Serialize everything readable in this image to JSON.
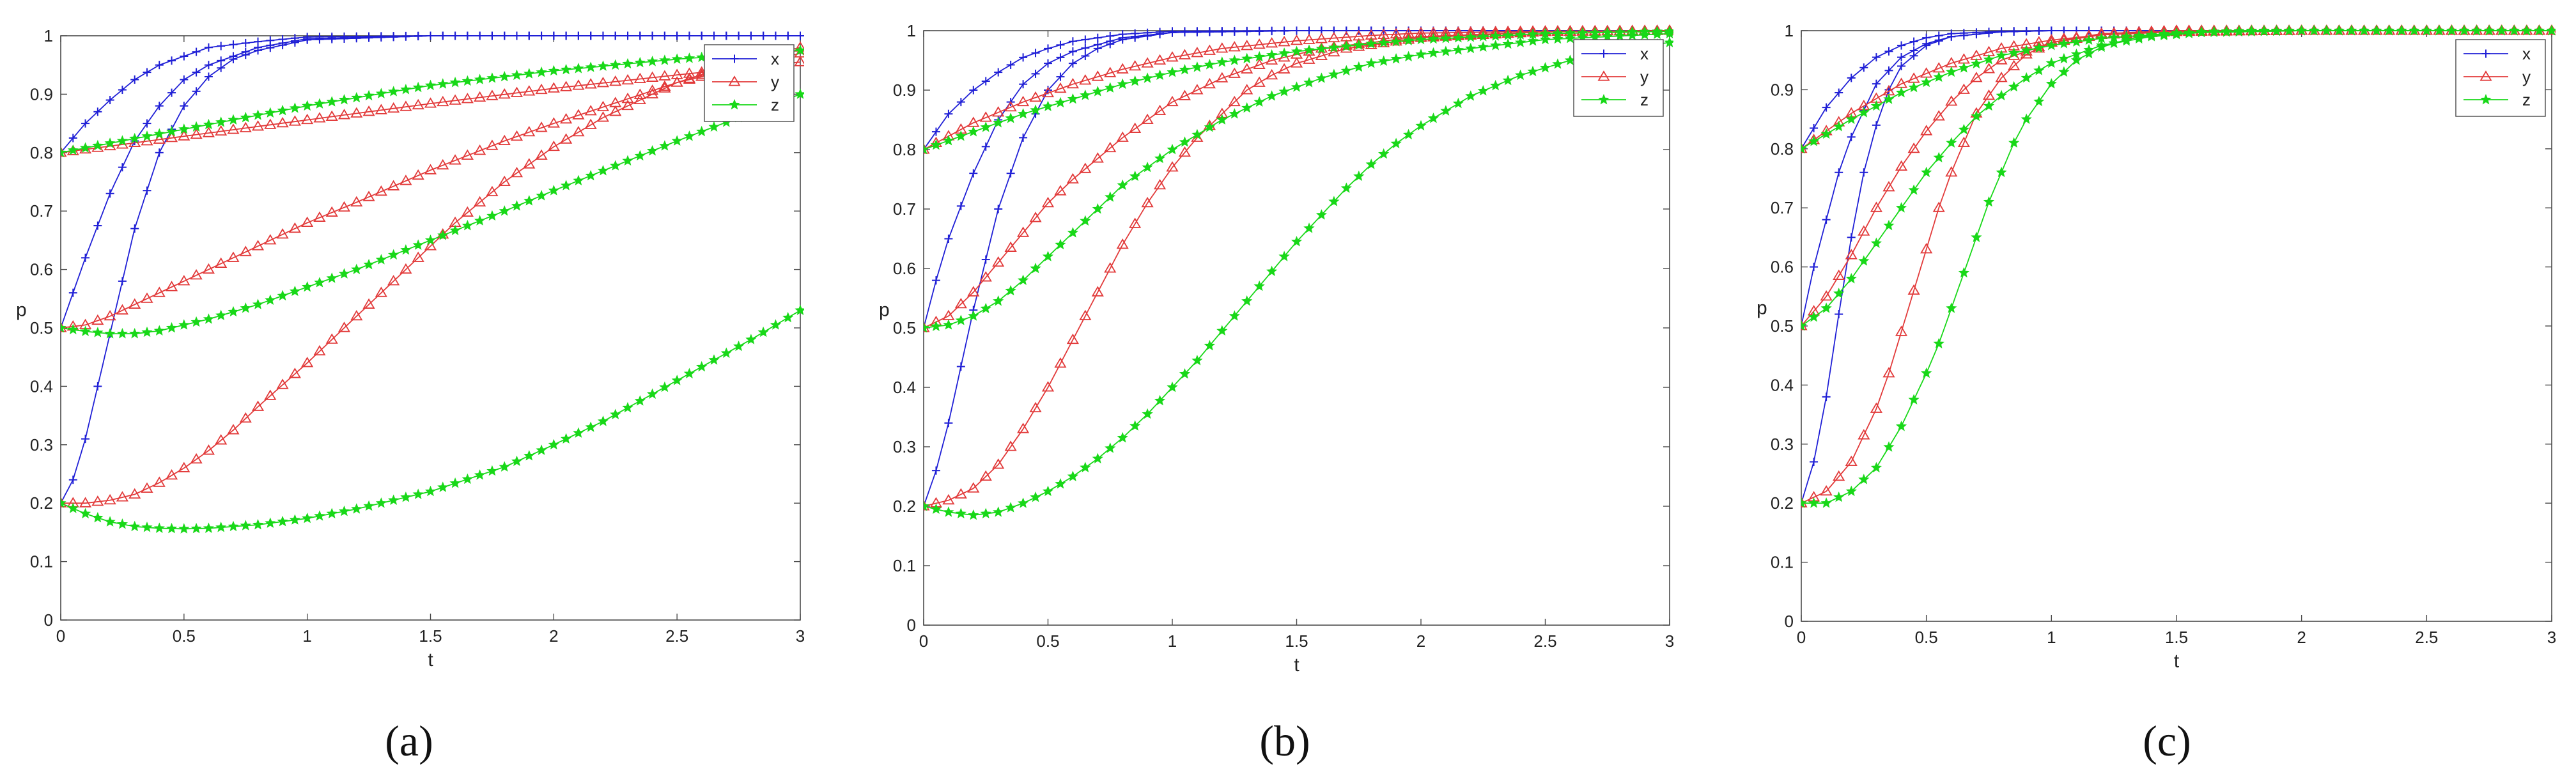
{
  "figure": {
    "panel_labels": [
      "(a)",
      "(b)",
      "(c)"
    ]
  },
  "colors": {
    "x": "#1f1fd6",
    "y": "#e23a3a",
    "z": "#18d818",
    "axis": "#4a4a4a"
  },
  "chart_data": [
    {
      "type": "line",
      "panel": "(a)",
      "xlabel": "t",
      "ylabel": "p",
      "xlim": [
        0,
        3
      ],
      "ylim": [
        0,
        1
      ],
      "xticks": [
        "0",
        "0.5",
        "1",
        "1.5",
        "2",
        "2.5",
        "3"
      ],
      "yticks": [
        "0",
        "0.1",
        "0.2",
        "0.3",
        "0.4",
        "0.5",
        "0.6",
        "0.7",
        "0.8",
        "0.9",
        "1"
      ],
      "legend": {
        "placement": "top-right",
        "entries": [
          "x",
          "y",
          "z"
        ]
      },
      "series": [
        {
          "name": "x",
          "color": "#1f1fd6",
          "marker": "plus",
          "x": [
            0,
            0.1,
            0.2,
            0.3,
            0.4,
            0.5,
            0.6,
            0.8,
            1.0,
            1.5,
            2.0,
            3.0
          ],
          "y": [
            0.8,
            0.85,
            0.89,
            0.925,
            0.95,
            0.965,
            0.98,
            0.99,
            0.998,
            1.0,
            1.0,
            1.0
          ]
        },
        {
          "name": "x",
          "color": "#1f1fd6",
          "marker": "plus",
          "x": [
            0,
            0.05,
            0.1,
            0.2,
            0.3,
            0.4,
            0.5,
            0.6,
            0.8,
            1.0,
            1.5,
            3.0
          ],
          "y": [
            0.5,
            0.56,
            0.62,
            0.73,
            0.82,
            0.88,
            0.925,
            0.95,
            0.98,
            0.995,
            1.0,
            1.0
          ]
        },
        {
          "name": "x",
          "color": "#1f1fd6",
          "marker": "plus",
          "x": [
            0,
            0.05,
            0.1,
            0.2,
            0.3,
            0.4,
            0.5,
            0.6,
            0.7,
            0.8,
            1.0,
            1.5,
            3.0
          ],
          "y": [
            0.2,
            0.24,
            0.31,
            0.49,
            0.67,
            0.8,
            0.88,
            0.93,
            0.96,
            0.975,
            0.993,
            1.0,
            1.0
          ]
        },
        {
          "name": "y",
          "color": "#e23a3a",
          "marker": "triangle",
          "x": [
            0,
            0.5,
            1.0,
            1.5,
            2.0,
            2.5,
            3.0
          ],
          "y": [
            0.8,
            0.828,
            0.856,
            0.884,
            0.91,
            0.933,
            0.955
          ]
        },
        {
          "name": "y",
          "color": "#e23a3a",
          "marker": "triangle",
          "x": [
            0,
            0.1,
            0.2,
            0.4,
            0.6,
            0.8,
            1.0,
            1.2,
            1.5,
            1.8,
            2.0,
            2.5,
            3.0
          ],
          "y": [
            0.5,
            0.505,
            0.52,
            0.56,
            0.6,
            0.64,
            0.68,
            0.715,
            0.77,
            0.82,
            0.85,
            0.92,
            0.97
          ]
        },
        {
          "name": "y",
          "color": "#e23a3a",
          "marker": "triangle",
          "x": [
            0,
            0.1,
            0.2,
            0.3,
            0.4,
            0.5,
            0.6,
            0.7,
            0.8,
            1.0,
            1.2,
            1.4,
            1.6,
            1.8,
            2.0,
            2.2,
            2.5,
            2.8,
            3.0
          ],
          "y": [
            0.2,
            0.2,
            0.205,
            0.215,
            0.235,
            0.26,
            0.29,
            0.325,
            0.365,
            0.44,
            0.52,
            0.6,
            0.68,
            0.75,
            0.81,
            0.86,
            0.92,
            0.96,
            0.98
          ]
        },
        {
          "name": "z",
          "color": "#18d818",
          "marker": "star",
          "x": [
            0,
            0.5,
            1.0,
            1.5,
            2.0,
            2.5,
            3.0
          ],
          "y": [
            0.8,
            0.84,
            0.88,
            0.915,
            0.94,
            0.96,
            0.975
          ]
        },
        {
          "name": "z",
          "color": "#18d818",
          "marker": "star",
          "x": [
            0,
            0.1,
            0.2,
            0.3,
            0.4,
            0.5,
            0.6,
            0.8,
            1.0,
            1.2,
            1.5,
            1.8,
            2.0,
            2.5,
            3.0
          ],
          "y": [
            0.5,
            0.494,
            0.49,
            0.49,
            0.495,
            0.505,
            0.515,
            0.54,
            0.57,
            0.6,
            0.65,
            0.7,
            0.735,
            0.82,
            0.9
          ]
        },
        {
          "name": "z",
          "color": "#18d818",
          "marker": "star",
          "x": [
            0,
            0.1,
            0.2,
            0.3,
            0.4,
            0.5,
            0.6,
            0.8,
            1.0,
            1.2,
            1.5,
            1.8,
            2.0,
            2.2,
            2.5,
            2.8,
            3.0
          ],
          "y": [
            0.2,
            0.182,
            0.168,
            0.16,
            0.157,
            0.156,
            0.157,
            0.163,
            0.174,
            0.19,
            0.22,
            0.262,
            0.3,
            0.34,
            0.41,
            0.48,
            0.53
          ]
        }
      ]
    },
    {
      "type": "line",
      "panel": "(b)",
      "xlabel": "t",
      "ylabel": "p",
      "xlim": [
        0,
        3
      ],
      "ylim": [
        0,
        1
      ],
      "xticks": [
        "0",
        "0.5",
        "1",
        "1.5",
        "2",
        "2.5",
        "3"
      ],
      "yticks": [
        "0",
        "0.1",
        "0.2",
        "0.3",
        "0.4",
        "0.5",
        "0.6",
        "0.7",
        "0.8",
        "0.9",
        "1"
      ],
      "legend": {
        "placement": "top-right",
        "entries": [
          "x",
          "y",
          "z"
        ]
      },
      "series": [
        {
          "name": "x",
          "color": "#1f1fd6",
          "marker": "plus",
          "x": [
            0,
            0.1,
            0.2,
            0.3,
            0.4,
            0.5,
            0.6,
            0.8,
            1.0,
            1.5,
            3.0
          ],
          "y": [
            0.8,
            0.86,
            0.9,
            0.93,
            0.955,
            0.97,
            0.982,
            0.994,
            0.999,
            1.0,
            1.0
          ]
        },
        {
          "name": "x",
          "color": "#1f1fd6",
          "marker": "plus",
          "x": [
            0,
            0.05,
            0.1,
            0.2,
            0.3,
            0.4,
            0.5,
            0.6,
            0.8,
            1.0,
            1.5,
            3.0
          ],
          "y": [
            0.5,
            0.58,
            0.65,
            0.76,
            0.85,
            0.91,
            0.945,
            0.965,
            0.988,
            0.997,
            1.0,
            1.0
          ]
        },
        {
          "name": "x",
          "color": "#1f1fd6",
          "marker": "plus",
          "x": [
            0,
            0.05,
            0.1,
            0.2,
            0.3,
            0.4,
            0.5,
            0.6,
            0.7,
            0.8,
            1.0,
            1.5,
            3.0
          ],
          "y": [
            0.2,
            0.26,
            0.34,
            0.53,
            0.7,
            0.82,
            0.9,
            0.945,
            0.97,
            0.985,
            0.997,
            1.0,
            1.0
          ]
        },
        {
          "name": "y",
          "color": "#e23a3a",
          "marker": "triangle",
          "x": [
            0,
            0.2,
            0.4,
            0.6,
            0.8,
            1.0,
            1.2,
            1.5,
            1.8,
            2.0,
            2.5,
            3.0
          ],
          "y": [
            0.8,
            0.845,
            0.88,
            0.91,
            0.935,
            0.955,
            0.97,
            0.983,
            0.992,
            0.996,
            0.999,
            1.0
          ]
        },
        {
          "name": "y",
          "color": "#e23a3a",
          "marker": "triangle",
          "x": [
            0,
            0.1,
            0.2,
            0.3,
            0.4,
            0.5,
            0.6,
            0.8,
            1.0,
            1.2,
            1.4,
            1.6,
            2.0,
            2.5,
            3.0
          ],
          "y": [
            0.5,
            0.52,
            0.56,
            0.61,
            0.66,
            0.71,
            0.75,
            0.82,
            0.88,
            0.92,
            0.95,
            0.97,
            0.99,
            0.998,
            1.0
          ]
        },
        {
          "name": "y",
          "color": "#e23a3a",
          "marker": "triangle",
          "x": [
            0,
            0.1,
            0.2,
            0.3,
            0.4,
            0.5,
            0.6,
            0.7,
            0.8,
            0.9,
            1.0,
            1.1,
            1.2,
            1.3,
            1.4,
            1.5,
            1.7,
            2.0,
            2.5,
            3.0
          ],
          "y": [
            0.2,
            0.21,
            0.23,
            0.27,
            0.33,
            0.4,
            0.48,
            0.56,
            0.64,
            0.71,
            0.77,
            0.82,
            0.86,
            0.9,
            0.925,
            0.945,
            0.97,
            0.988,
            0.998,
            1.0
          ]
        },
        {
          "name": "z",
          "color": "#18d818",
          "marker": "star",
          "x": [
            0,
            0.2,
            0.4,
            0.6,
            0.8,
            1.0,
            1.2,
            1.5,
            1.8,
            2.0,
            2.5,
            3.0
          ],
          "y": [
            0.8,
            0.83,
            0.86,
            0.885,
            0.91,
            0.93,
            0.947,
            0.965,
            0.978,
            0.985,
            0.995,
            0.999
          ]
        },
        {
          "name": "z",
          "color": "#18d818",
          "marker": "star",
          "x": [
            0,
            0.1,
            0.2,
            0.3,
            0.4,
            0.5,
            0.6,
            0.8,
            1.0,
            1.2,
            1.4,
            1.6,
            1.8,
            2.0,
            2.5,
            3.0
          ],
          "y": [
            0.5,
            0.505,
            0.52,
            0.545,
            0.58,
            0.62,
            0.66,
            0.74,
            0.8,
            0.85,
            0.89,
            0.92,
            0.945,
            0.96,
            0.985,
            0.995
          ]
        },
        {
          "name": "z",
          "color": "#18d818",
          "marker": "star",
          "x": [
            0,
            0.1,
            0.2,
            0.3,
            0.4,
            0.5,
            0.6,
            0.7,
            0.8,
            0.9,
            1.0,
            1.1,
            1.2,
            1.3,
            1.4,
            1.5,
            1.6,
            1.7,
            1.8,
            1.9,
            2.0,
            2.2,
            2.4,
            2.6,
            2.8,
            3.0
          ],
          "y": [
            0.2,
            0.19,
            0.185,
            0.19,
            0.205,
            0.225,
            0.25,
            0.28,
            0.315,
            0.355,
            0.4,
            0.445,
            0.495,
            0.545,
            0.595,
            0.645,
            0.69,
            0.735,
            0.775,
            0.81,
            0.84,
            0.89,
            0.925,
            0.95,
            0.97,
            0.98
          ]
        }
      ]
    },
    {
      "type": "line",
      "panel": "(c)",
      "xlabel": "t",
      "ylabel": "p",
      "xlim": [
        0,
        3
      ],
      "ylim": [
        0,
        1
      ],
      "xticks": [
        "0",
        "0.5",
        "1",
        "1.5",
        "2",
        "2.5",
        "3"
      ],
      "yticks": [
        "0",
        "0.1",
        "0.2",
        "0.3",
        "0.4",
        "0.5",
        "0.6",
        "0.7",
        "0.8",
        "0.9",
        "1"
      ],
      "legend": {
        "placement": "top-right",
        "entries": [
          "x",
          "y",
          "z"
        ]
      },
      "series": [
        {
          "name": "x",
          "color": "#1f1fd6",
          "marker": "plus",
          "x": [
            0,
            0.1,
            0.2,
            0.3,
            0.4,
            0.5,
            0.6,
            0.8,
            1.0,
            3.0
          ],
          "y": [
            0.8,
            0.87,
            0.92,
            0.955,
            0.975,
            0.988,
            0.995,
            0.999,
            1.0,
            1.0
          ]
        },
        {
          "name": "x",
          "color": "#1f1fd6",
          "marker": "plus",
          "x": [
            0,
            0.05,
            0.1,
            0.15,
            0.2,
            0.3,
            0.4,
            0.5,
            0.6,
            0.8,
            1.0,
            3.0
          ],
          "y": [
            0.5,
            0.6,
            0.68,
            0.76,
            0.82,
            0.91,
            0.955,
            0.978,
            0.99,
            0.998,
            1.0,
            1.0
          ]
        },
        {
          "name": "x",
          "color": "#1f1fd6",
          "marker": "plus",
          "x": [
            0,
            0.05,
            0.1,
            0.15,
            0.2,
            0.25,
            0.3,
            0.35,
            0.4,
            0.5,
            0.6,
            0.8,
            1.0,
            3.0
          ],
          "y": [
            0.2,
            0.27,
            0.38,
            0.52,
            0.65,
            0.76,
            0.84,
            0.9,
            0.94,
            0.975,
            0.99,
            0.998,
            1.0,
            1.0
          ]
        },
        {
          "name": "y",
          "color": "#e23a3a",
          "marker": "triangle",
          "x": [
            0,
            0.2,
            0.4,
            0.6,
            0.8,
            1.0,
            1.2,
            1.5,
            2.0,
            3.0
          ],
          "y": [
            0.8,
            0.86,
            0.91,
            0.945,
            0.97,
            0.984,
            0.993,
            0.998,
            1.0,
            1.0
          ]
        },
        {
          "name": "y",
          "color": "#e23a3a",
          "marker": "triangle",
          "x": [
            0,
            0.1,
            0.2,
            0.3,
            0.4,
            0.5,
            0.6,
            0.7,
            0.8,
            1.0,
            1.2,
            1.5,
            2.0,
            3.0
          ],
          "y": [
            0.5,
            0.55,
            0.62,
            0.7,
            0.77,
            0.83,
            0.88,
            0.92,
            0.95,
            0.98,
            0.993,
            0.999,
            1.0,
            1.0
          ]
        },
        {
          "name": "y",
          "color": "#e23a3a",
          "marker": "triangle",
          "x": [
            0,
            0.1,
            0.2,
            0.3,
            0.35,
            0.4,
            0.45,
            0.5,
            0.55,
            0.6,
            0.65,
            0.7,
            0.8,
            0.9,
            1.0,
            1.2,
            1.5,
            2.0,
            3.0
          ],
          "y": [
            0.2,
            0.22,
            0.27,
            0.36,
            0.42,
            0.49,
            0.56,
            0.63,
            0.7,
            0.76,
            0.81,
            0.86,
            0.92,
            0.96,
            0.98,
            0.995,
            1.0,
            1.0,
            1.0
          ]
        },
        {
          "name": "z",
          "color": "#18d818",
          "marker": "star",
          "x": [
            0,
            0.2,
            0.4,
            0.6,
            0.8,
            1.0,
            1.2,
            1.5,
            2.0,
            3.0
          ],
          "y": [
            0.8,
            0.85,
            0.895,
            0.93,
            0.958,
            0.975,
            0.987,
            0.996,
            1.0,
            1.0
          ]
        },
        {
          "name": "z",
          "color": "#18d818",
          "marker": "star",
          "x": [
            0,
            0.1,
            0.2,
            0.3,
            0.4,
            0.5,
            0.6,
            0.7,
            0.8,
            0.9,
            1.0,
            1.2,
            1.4,
            1.6,
            2.0,
            3.0
          ],
          "y": [
            0.5,
            0.53,
            0.58,
            0.64,
            0.7,
            0.76,
            0.81,
            0.855,
            0.89,
            0.92,
            0.945,
            0.975,
            0.99,
            0.997,
            1.0,
            1.0
          ]
        },
        {
          "name": "z",
          "color": "#18d818",
          "marker": "star",
          "x": [
            0,
            0.1,
            0.2,
            0.3,
            0.4,
            0.5,
            0.55,
            0.6,
            0.65,
            0.7,
            0.75,
            0.8,
            0.85,
            0.9,
            1.0,
            1.1,
            1.2,
            1.3,
            1.4,
            1.6,
            1.8,
            2.0,
            2.5,
            3.0
          ],
          "y": [
            0.2,
            0.2,
            0.22,
            0.26,
            0.33,
            0.42,
            0.47,
            0.53,
            0.59,
            0.65,
            0.71,
            0.76,
            0.81,
            0.85,
            0.91,
            0.95,
            0.972,
            0.985,
            0.992,
            0.998,
            1.0,
            1.0,
            1.0,
            1.0
          ]
        }
      ]
    }
  ]
}
